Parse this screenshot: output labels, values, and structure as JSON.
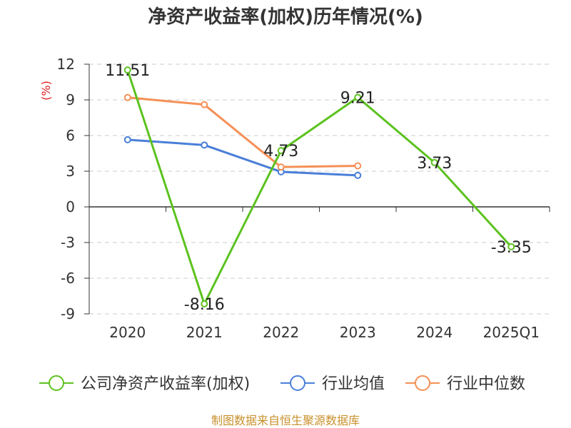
{
  "chart_data": {
    "type": "line",
    "title": "净资产收益率(加权)历年情况(%)",
    "ylabel": "(%)",
    "categories": [
      "2020",
      "2021",
      "2022",
      "2023",
      "2024",
      "2025Q1"
    ],
    "ylim": [
      -9,
      12
    ],
    "yticks": [
      12,
      9,
      6,
      3,
      0,
      -3,
      -6,
      -9
    ],
    "grid": "dashed-horizontal",
    "legend_position": "bottom",
    "series": [
      {
        "name": "公司净资产收益率(加权)",
        "color": "#5cc21f",
        "values": [
          11.51,
          -8.16,
          4.73,
          9.21,
          3.73,
          -3.35
        ],
        "labels": [
          "11.51",
          "-8.16",
          "4.73",
          "9.21",
          "3.73",
          "-3.35"
        ]
      },
      {
        "name": "行业均值",
        "color": "#4a7fd8",
        "values": [
          5.65,
          5.2,
          2.95,
          2.65,
          null,
          null
        ]
      },
      {
        "name": "行业中位数",
        "color": "#f59056",
        "values": [
          9.2,
          8.6,
          3.35,
          3.45,
          null,
          null
        ]
      }
    ],
    "source": "制图数据来自恒生聚源数据库"
  }
}
